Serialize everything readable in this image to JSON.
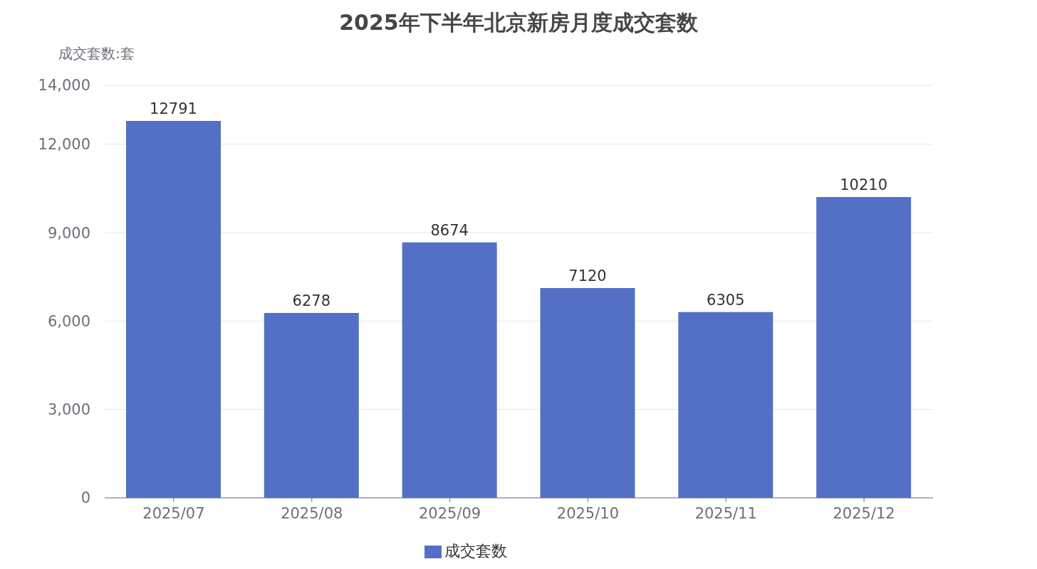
{
  "chart_data": {
    "type": "bar",
    "title": "2025年下半年北京新房月度成交套数",
    "ylabel": "成交套数:套",
    "categories": [
      "2025/07",
      "2025/08",
      "2025/09",
      "2025/10",
      "2025/11",
      "2025/12"
    ],
    "series": [
      {
        "name": "成交套数",
        "color": "#5470c6",
        "values": [
          12791,
          6278,
          8674,
          7120,
          6305,
          10210
        ]
      }
    ],
    "ylim": [
      0,
      14000
    ],
    "yticks": [
      {
        "value": 0,
        "label": "0"
      },
      {
        "value": 3000,
        "label": "3,000"
      },
      {
        "value": 6000,
        "label": "6,000"
      },
      {
        "value": 9000,
        "label": "9,000"
      },
      {
        "value": 12000,
        "label": "12,000"
      },
      {
        "value": 14000,
        "label": "14,000"
      }
    ],
    "grid": "y",
    "legend": "bottom",
    "data_labels": true
  }
}
